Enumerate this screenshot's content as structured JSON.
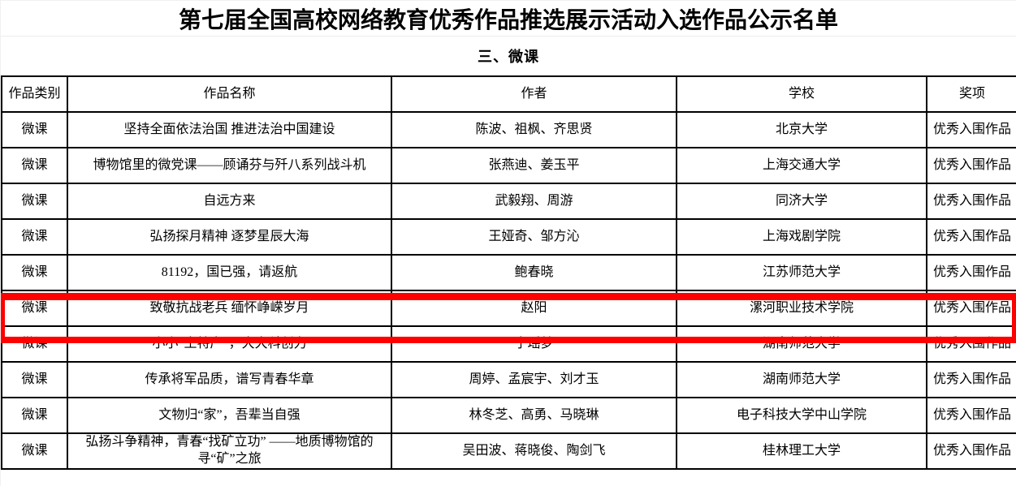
{
  "page": {
    "title": "第七届全国高校网络教育优秀作品推选展示活动入选作品公示名单",
    "section_label": "三、微课"
  },
  "table": {
    "headers": [
      "作品类别",
      "作品名称",
      "作者",
      "学校",
      "奖项"
    ],
    "rows": [
      {
        "category": "微课",
        "title": "坚持全面依法治国 推进法治中国建设",
        "authors": "陈波、祖枫、齐思贤",
        "school": "北京大学",
        "award": "优秀入围作品"
      },
      {
        "category": "微课",
        "title": "博物馆里的微党课——顾诵芬与歼八系列战斗机",
        "authors": "张燕迪、姜玉平",
        "school": "上海交通大学",
        "award": "优秀入围作品"
      },
      {
        "category": "微课",
        "title": "自远方来",
        "authors": "武毅翔、周游",
        "school": "同济大学",
        "award": "优秀入围作品"
      },
      {
        "category": "微课",
        "title": "弘扬探月精神 逐梦星辰大海",
        "authors": "王娅奇、邹方沁",
        "school": "上海戏剧学院",
        "award": "优秀入围作品"
      },
      {
        "category": "微课",
        "title": "81192，国已强，请返航",
        "authors": "鲍春晓",
        "school": "江苏师范大学",
        "award": "优秀入围作品"
      },
      {
        "category": "微课",
        "title": "致敬抗战老兵 缅怀峥嵘岁月",
        "authors": "赵阳",
        "school": "漯河职业技术学院",
        "award": "优秀入围作品"
      },
      {
        "category": "微课",
        "title": "小小“土特产”，大大科创力",
        "authors": "宁瑶梦",
        "school": "湖南师范大学",
        "award": "优秀入围作品"
      },
      {
        "category": "微课",
        "title": "传承将军品质，谱写青春华章",
        "authors": "周婷、孟宸宇、刘才玉",
        "school": "湖南师范大学",
        "award": "优秀入围作品"
      },
      {
        "category": "微课",
        "title": "文物归“家”，吾辈当自强",
        "authors": "林冬芝、高勇、马晓琳",
        "school": "电子科技大学中山学院",
        "award": "优秀入围作品"
      },
      {
        "category": "微课",
        "title": "弘扬斗争精神，青春“找矿立功” ——地质博物馆的寻“矿”之旅",
        "authors": "吴田波、蒋晓俊、陶剑飞",
        "school": "桂林理工大学",
        "award": "优秀入围作品"
      }
    ],
    "highlighted_row_index": 5
  },
  "colors": {
    "highlight_border": "#fe0000",
    "table_border": "#000000",
    "hairline": "#ececec",
    "background": "#ffffff"
  }
}
